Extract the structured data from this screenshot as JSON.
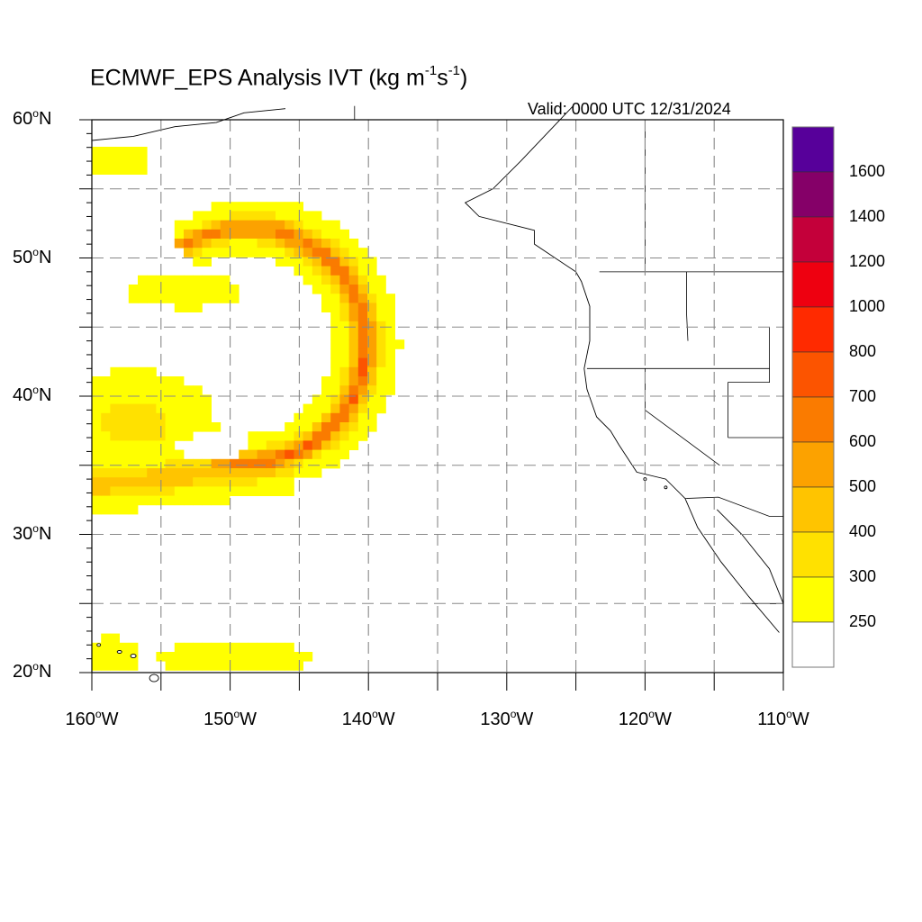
{
  "title": {
    "prefix": "ECMWF_EPS Analysis IVT (kg m",
    "exp1": "-1",
    "middle": "s",
    "exp2": "-1",
    "suffix": ")"
  },
  "valid_time": "Valid: 0000 UTC 12/31/2024",
  "lat_ticks": [
    "60",
    "50",
    "40",
    "30",
    "20"
  ],
  "lat_suffix": "N",
  "lon_ticks": [
    "160",
    "150",
    "140",
    "130",
    "120",
    "110"
  ],
  "lon_suffix": "W",
  "degree_symbol": "o",
  "map_extent": {
    "lon_min": -160,
    "lon_max": -110,
    "lat_min": 20,
    "lat_max": 60
  },
  "gridlines": "dashed every 5 degrees",
  "colorbar": {
    "labels": [
      "1600",
      "1400",
      "1200",
      "1000",
      "800",
      "700",
      "600",
      "500",
      "400",
      "300",
      "250"
    ],
    "colors": [
      "#57009a",
      "#850068",
      "#c4003a",
      "#ee0010",
      "#ff2a00",
      "#fc5400",
      "#fa7b00",
      "#fca200",
      "#ffc400",
      "#ffe100",
      "#ffff00",
      "#ffffff"
    ]
  }
}
